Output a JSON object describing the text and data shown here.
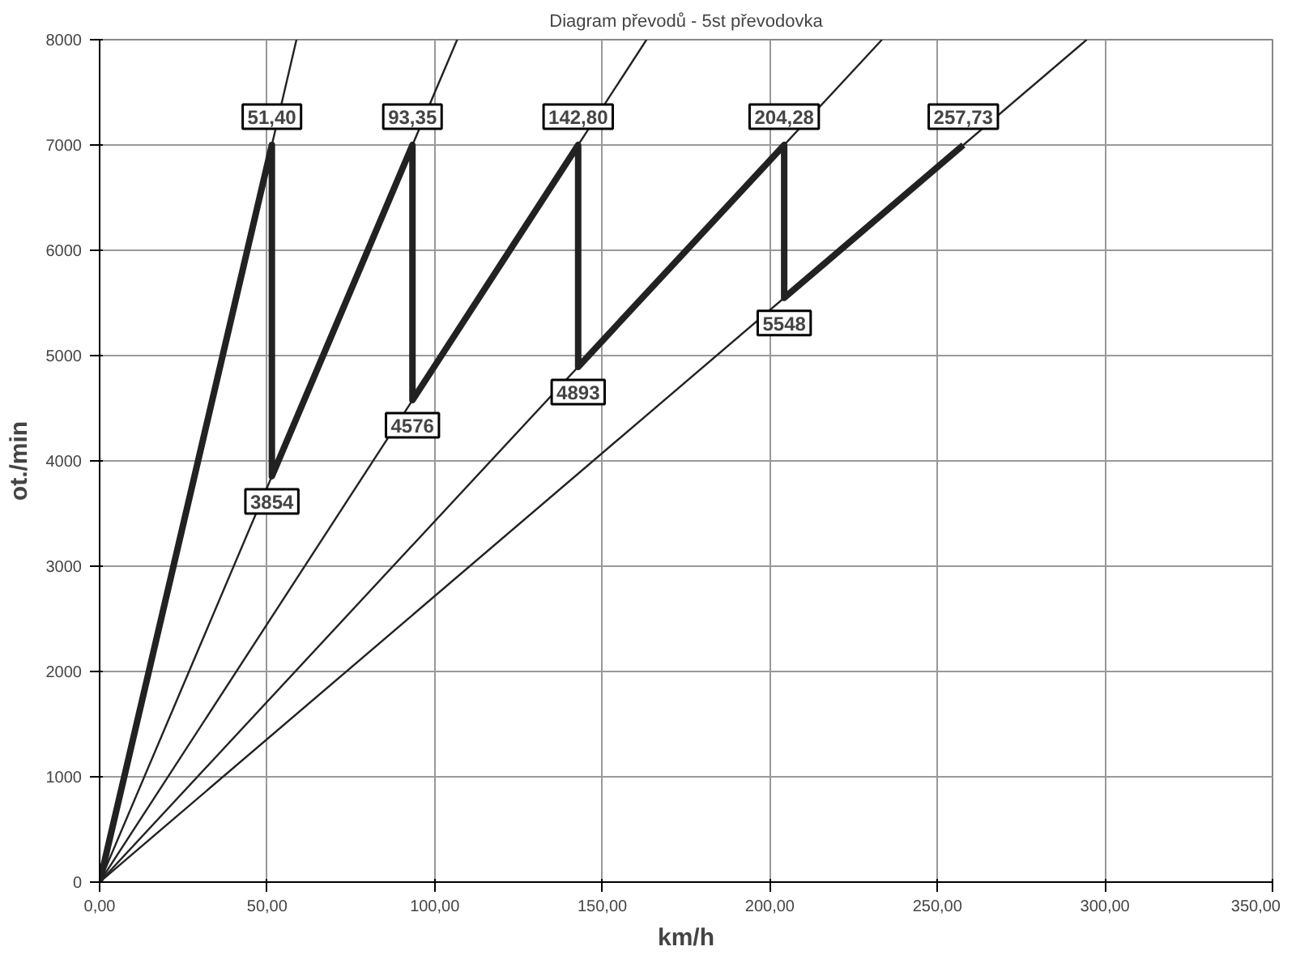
{
  "chart_data": {
    "type": "line",
    "title": "Diagram převodů - 5st převodovka",
    "xlabel": "km/h",
    "ylabel": "ot./min",
    "xlim": [
      0,
      350
    ],
    "ylim": [
      0,
      8000
    ],
    "xticks": [
      {
        "value": 0,
        "label": "0,00"
      },
      {
        "value": 50,
        "label": "50,00"
      },
      {
        "value": 100,
        "label": "100,00"
      },
      {
        "value": 150,
        "label": "150,00"
      },
      {
        "value": 200,
        "label": "200,00"
      },
      {
        "value": 250,
        "label": "250,00"
      },
      {
        "value": 300,
        "label": "300,00"
      },
      {
        "value": 350,
        "label": "350,00"
      }
    ],
    "yticks": [
      0,
      1000,
      2000,
      3000,
      4000,
      5000,
      6000,
      7000,
      8000
    ],
    "grid": true,
    "marker": "none",
    "line_style": "solid",
    "series": [
      {
        "color": "#222222",
        "x": [
          0,
          51.4,
          51.4,
          93.35,
          93.35,
          142.8,
          142.8,
          204.28,
          204.28,
          257.73
        ],
        "values": [
          0,
          7000,
          3854,
          7000,
          4576,
          7000,
          4893,
          7000,
          5548,
          7000
        ]
      },
      {
        "color": "#222222",
        "x": [
          0,
          58.74
        ],
        "values": [
          0,
          8000
        ]
      },
      {
        "color": "#222222",
        "x": [
          0,
          106.69
        ],
        "values": [
          0,
          8000
        ]
      },
      {
        "color": "#222222",
        "x": [
          0,
          163.2
        ],
        "values": [
          0,
          8000
        ]
      },
      {
        "color": "#222222",
        "x": [
          0,
          233.46
        ],
        "values": [
          0,
          8000
        ]
      },
      {
        "color": "#222222",
        "x": [
          0,
          294.55
        ],
        "values": [
          0,
          8000
        ]
      }
    ],
    "annotations": [
      {
        "text": "51,40",
        "x": 51.4,
        "y": 7000
      },
      {
        "text": "93,35",
        "x": 93.35,
        "y": 7000
      },
      {
        "text": "142,80",
        "x": 142.8,
        "y": 7000
      },
      {
        "text": "204,28",
        "x": 204.28,
        "y": 7000
      },
      {
        "text": "257,73",
        "x": 257.73,
        "y": 7000
      },
      {
        "text": "3854",
        "x": 51.4,
        "y": 3854
      },
      {
        "text": "4576",
        "x": 93.35,
        "y": 4576
      },
      {
        "text": "4893",
        "x": 142.8,
        "y": 4893
      },
      {
        "text": "5548",
        "x": 204.28,
        "y": 5548
      }
    ]
  }
}
